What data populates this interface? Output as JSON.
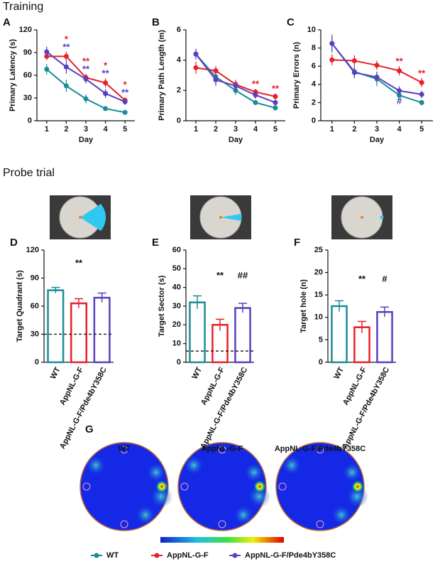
{
  "sections": {
    "training": "Training",
    "probe": "Probe trial"
  },
  "chart_data": [
    {
      "type": "line",
      "label": "A",
      "ylabel": "Primary Latency (s)",
      "xlabel": "Day",
      "x": [
        1,
        2,
        3,
        4,
        5
      ],
      "xlim": [
        0.5,
        5.5
      ],
      "xticks": [
        1,
        2,
        3,
        4,
        5
      ],
      "ylim": [
        0,
        120
      ],
      "yticks": [
        0,
        30,
        60,
        90,
        120
      ],
      "series": [
        {
          "name": "WT",
          "color": "#1a8c96",
          "values": [
            68,
            46,
            29,
            16,
            11
          ],
          "errors": [
            7,
            8,
            6,
            3,
            1
          ]
        },
        {
          "name": "AppNL-G-F",
          "color": "#e8202a",
          "values": [
            85,
            85,
            57,
            50,
            27
          ],
          "errors": [
            5,
            6,
            5,
            6,
            4
          ]
        },
        {
          "name": "AppNL-G-F/Pde4bY358C",
          "color": "#5a3fc0",
          "values": [
            91,
            71,
            55,
            36,
            25
          ],
          "errors": [
            7,
            9,
            6,
            6,
            4
          ]
        }
      ],
      "annotations": [
        {
          "text": "**",
          "series": 2,
          "index": 1
        },
        {
          "text": "*",
          "series": 1,
          "index": 1
        },
        {
          "text": "**",
          "series": 2,
          "index": 2
        },
        {
          "text": "**",
          "series": 1,
          "index": 2
        },
        {
          "text": "**",
          "series": 2,
          "index": 3
        },
        {
          "text": "*",
          "series": 1,
          "index": 3
        },
        {
          "text": "**",
          "series": 2,
          "index": 4
        },
        {
          "text": "*",
          "series": 1,
          "index": 4
        }
      ]
    },
    {
      "type": "line",
      "label": "B",
      "ylabel": "Primary Path Length (m)",
      "xlabel": "Day",
      "x": [
        1,
        2,
        3,
        4,
        5
      ],
      "xlim": [
        0.5,
        5.5
      ],
      "xticks": [
        1,
        2,
        3,
        4,
        5
      ],
      "ylim": [
        0,
        6
      ],
      "yticks": [
        0,
        2,
        4,
        6
      ],
      "series": [
        {
          "name": "WT",
          "color": "#1a8c96",
          "values": [
            4.4,
            2.9,
            2.0,
            1.2,
            0.85
          ],
          "errors": [
            0.3,
            0.5,
            0.3,
            0.15,
            0.1
          ]
        },
        {
          "name": "AppNL-G-F",
          "color": "#e8202a",
          "values": [
            3.5,
            3.3,
            2.4,
            1.9,
            1.6
          ],
          "errors": [
            0.4,
            0.3,
            0.3,
            0.2,
            0.2
          ]
        },
        {
          "name": "AppNL-G-F/Pde4bY358C",
          "color": "#5a3fc0",
          "values": [
            4.4,
            2.7,
            2.3,
            1.7,
            1.2
          ],
          "errors": [
            0.35,
            0.4,
            0.3,
            0.25,
            0.2
          ]
        }
      ],
      "annotations": [
        {
          "text": "**",
          "series": 1,
          "index": 3
        },
        {
          "text": "**",
          "series": 1,
          "index": 4
        }
      ]
    },
    {
      "type": "line",
      "label": "C",
      "ylabel": "Primary Errors (n)",
      "xlabel": "Day",
      "x": [
        1,
        2,
        3,
        4,
        5
      ],
      "xlim": [
        0.5,
        5.5
      ],
      "xticks": [
        1,
        2,
        3,
        4,
        5
      ],
      "ylim": [
        0,
        10
      ],
      "yticks": [
        0,
        2,
        4,
        6,
        8,
        10
      ],
      "series": [
        {
          "name": "WT",
          "color": "#1a8c96",
          "values": [
            8.5,
            5.4,
            4.6,
            2.8,
            2.0
          ],
          "errors": [
            1.0,
            0.7,
            0.8,
            0.5,
            0.3
          ]
        },
        {
          "name": "AppNL-G-F",
          "color": "#e8202a",
          "values": [
            6.7,
            6.6,
            6.1,
            5.5,
            4.2
          ],
          "errors": [
            0.6,
            0.6,
            0.5,
            0.5,
            0.5
          ]
        },
        {
          "name": "AppNL-G-F/Pde4bY358C",
          "color": "#5a3fc0",
          "values": [
            8.5,
            5.3,
            4.8,
            3.3,
            2.9
          ],
          "errors": [
            0.8,
            0.6,
            0.6,
            0.5,
            0.4
          ]
        }
      ],
      "annotations": [
        {
          "text": "**",
          "series": 1,
          "index": 3
        },
        {
          "text": "**",
          "series": 1,
          "index": 4
        },
        {
          "text": "#",
          "series": 2,
          "index": 3,
          "position": "below"
        }
      ]
    },
    {
      "type": "bar",
      "label": "D",
      "ylabel": "Target Quadrant (s)",
      "categories": [
        "WT",
        "AppNL-G-F",
        "AppNL-G-F/Pde4bY358C"
      ],
      "colors": [
        "#1a8c96",
        "#e8202a",
        "#5a3fc0"
      ],
      "values": [
        77,
        63,
        69
      ],
      "errors": [
        3,
        5,
        5
      ],
      "reference_line": 30,
      "ylim": [
        0,
        120
      ],
      "yticks": [
        0,
        30,
        60,
        90,
        120
      ],
      "annotations": [
        {
          "text": "**",
          "index": 1
        }
      ]
    },
    {
      "type": "bar",
      "label": "E",
      "ylabel": "Target Sector (s)",
      "categories": [
        "WT",
        "AppNL-G-F",
        "AppNL-G-F/Pde4bY358C"
      ],
      "colors": [
        "#1a8c96",
        "#e8202a",
        "#5a3fc0"
      ],
      "values": [
        32,
        20,
        29
      ],
      "errors": [
        3.5,
        3,
        2.5
      ],
      "reference_line": 6,
      "ylim": [
        0,
        60
      ],
      "yticks": [
        0,
        10,
        20,
        30,
        40,
        50,
        60
      ],
      "annotations": [
        {
          "text": "**",
          "index": 1
        },
        {
          "text": "##",
          "index": 2
        }
      ]
    },
    {
      "type": "bar",
      "label": "F",
      "ylabel": "Target hole (n)",
      "categories": [
        "WT",
        "AppNL-G-F",
        "AppNL-G-F/Pde4bY358C"
      ],
      "colors": [
        "#1a8c96",
        "#e8202a",
        "#5a3fc0"
      ],
      "values": [
        12.5,
        7.8,
        11.2
      ],
      "errors": [
        1.2,
        1.3,
        1.1
      ],
      "ylim": [
        0,
        25
      ],
      "yticks": [
        0,
        5,
        10,
        15,
        20,
        25
      ],
      "annotations": [
        {
          "text": "**",
          "index": 1
        },
        {
          "text": "#",
          "index": 2
        }
      ]
    }
  ],
  "heatmaps": {
    "label": "G",
    "titles": [
      "WT",
      "AppNL-G-F",
      "AppNL-G-F/Pde4bY358C"
    ]
  }
}
